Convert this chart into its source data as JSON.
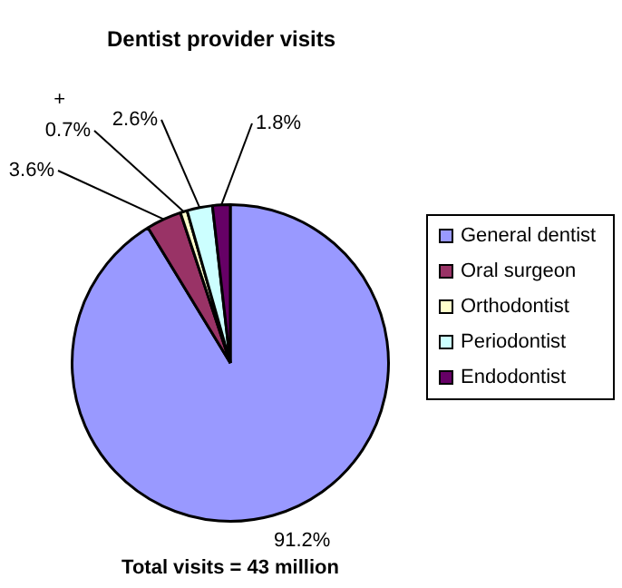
{
  "chart_data": {
    "type": "pie",
    "title": "Dentist provider visits",
    "categories": [
      "General dentist",
      "Oral surgeon",
      "Orthodontist",
      "Periodontist",
      "Endodontist"
    ],
    "values": [
      91.2,
      3.6,
      0.7,
      2.6,
      1.8
    ],
    "colors": [
      "#9999ff",
      "#993366",
      "#ffffcc",
      "#ccffff",
      "#660066"
    ],
    "value_labels": [
      "91.2%",
      "3.6%",
      "+\n0.7%",
      "2.6%",
      "1.8%"
    ],
    "legend": "right",
    "annotations": [
      "Total visits = 43 million"
    ]
  }
}
